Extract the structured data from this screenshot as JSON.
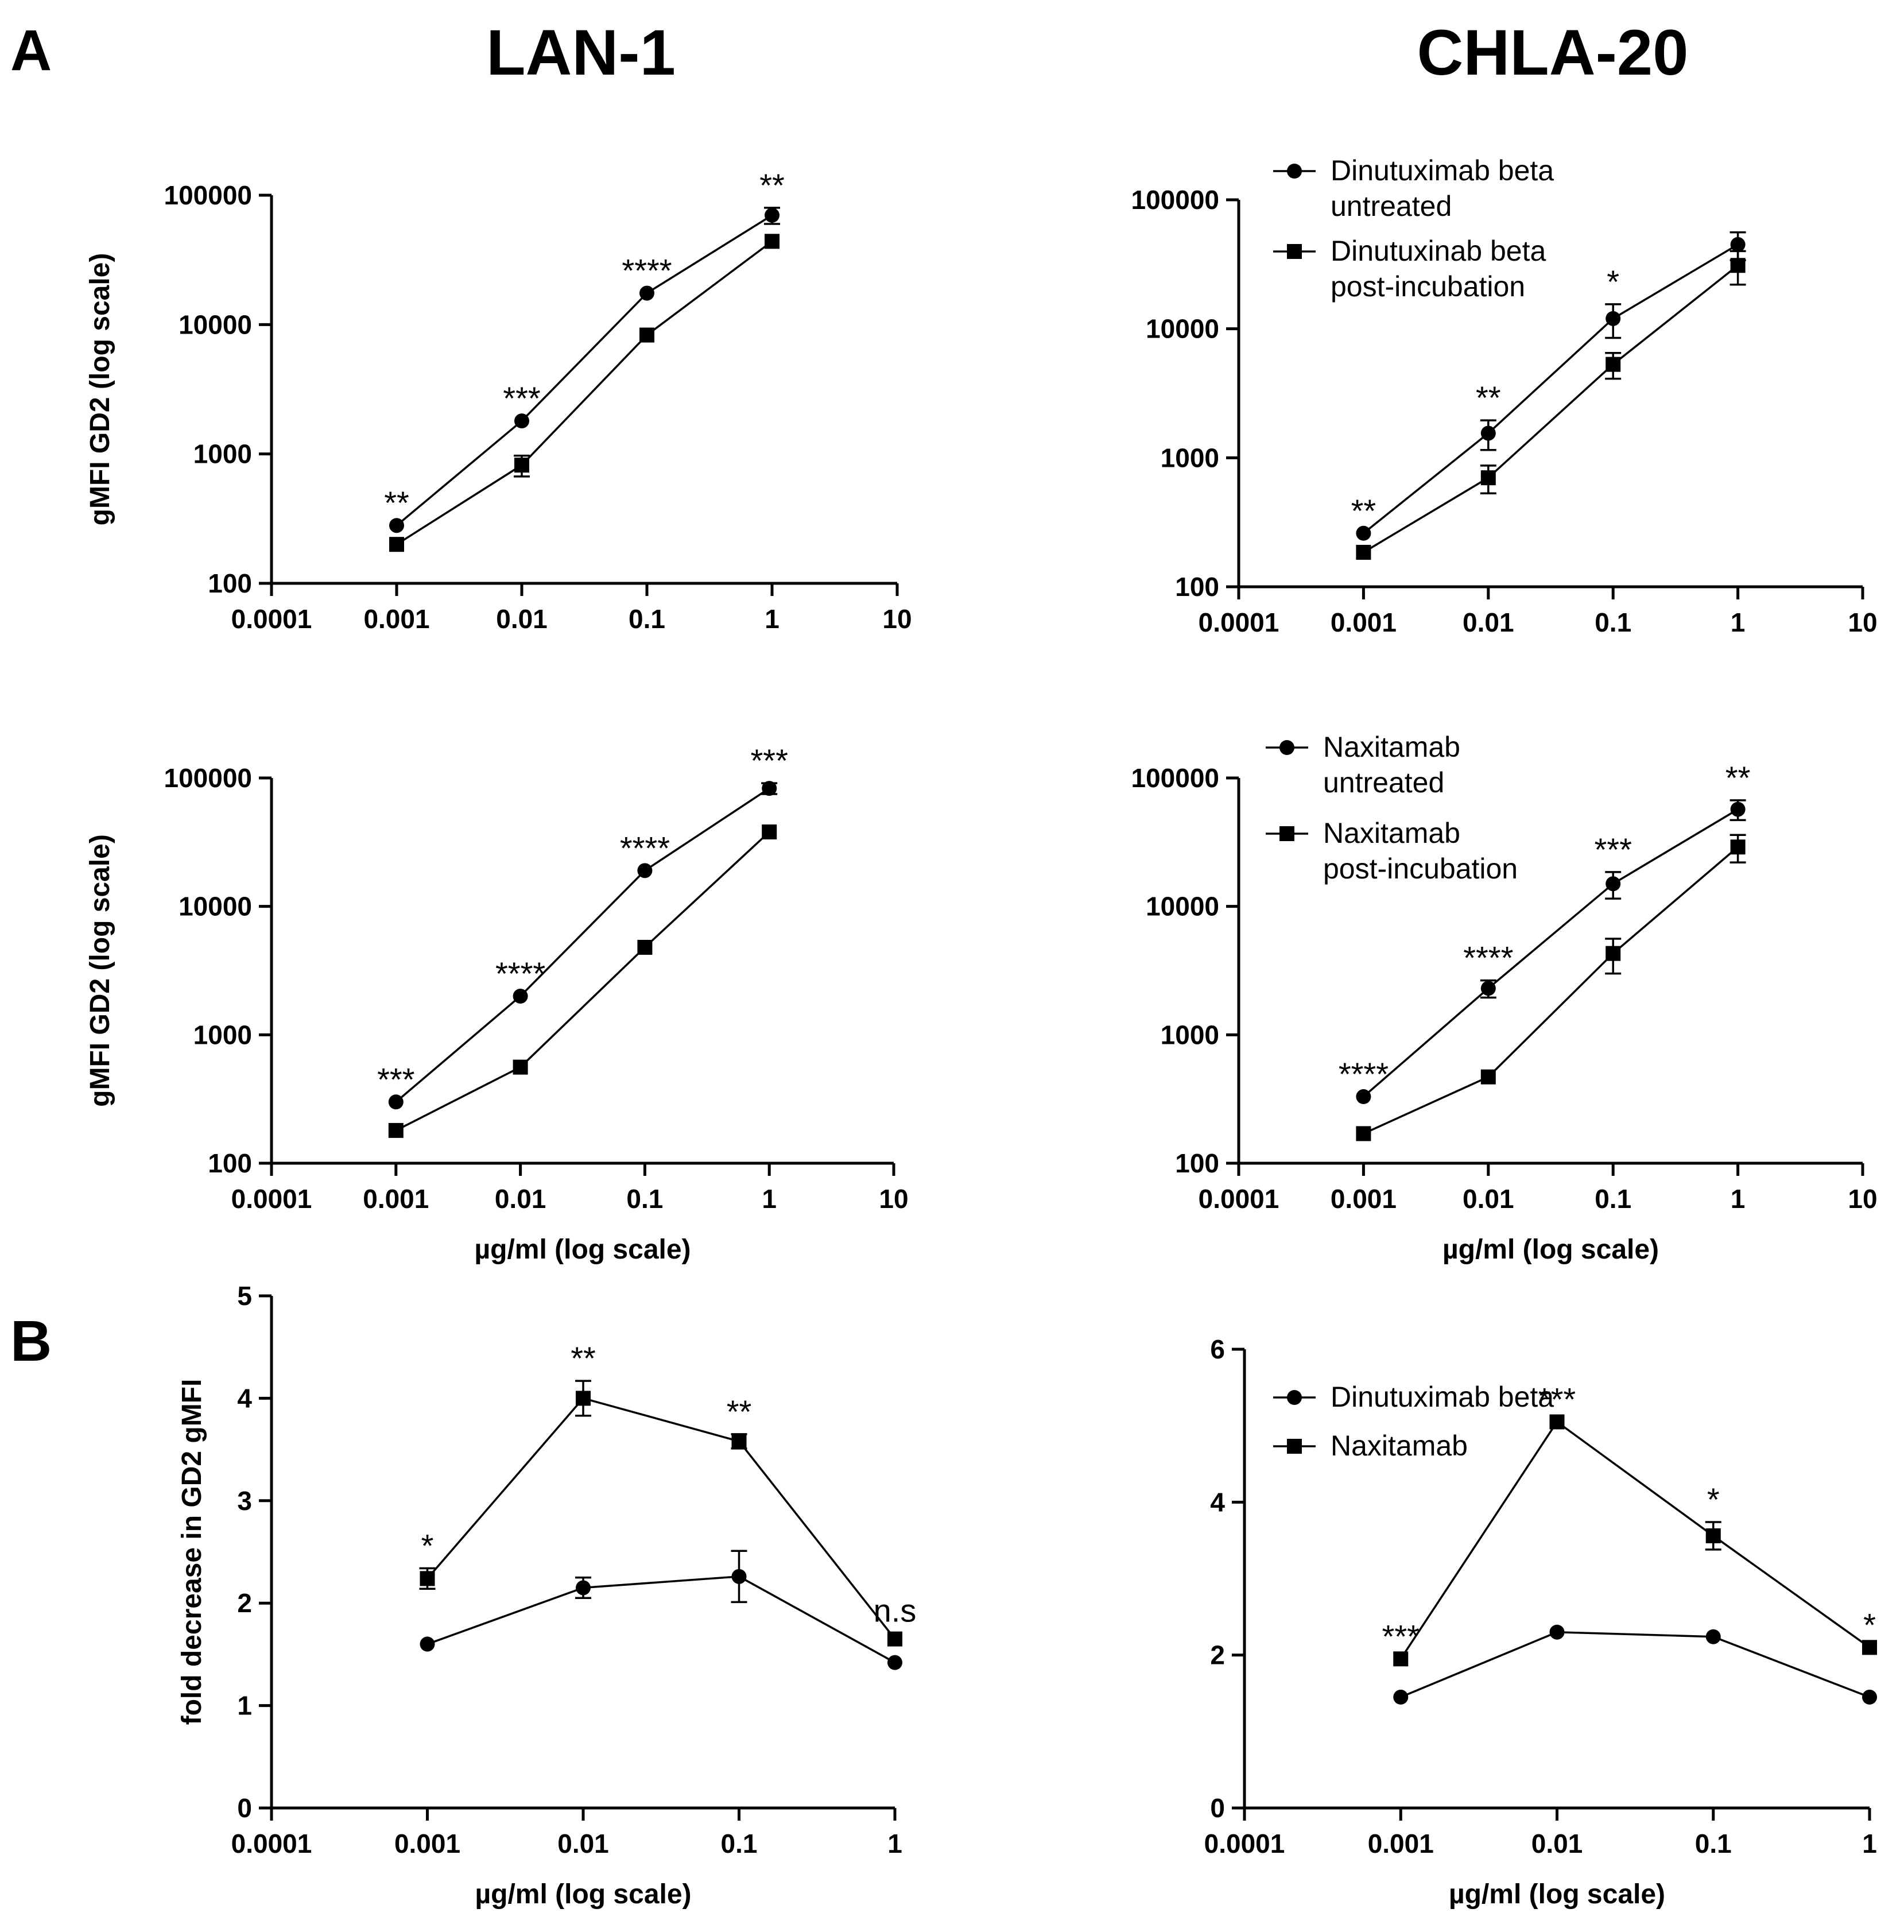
{
  "figure": {
    "panel_labels": [
      "A",
      "B"
    ],
    "column_titles": [
      "LAN-1",
      "CHLA-20"
    ]
  },
  "chart_data": [
    {
      "type": "line",
      "panel": "A",
      "cell_line": "LAN-1",
      "title": "LAN-1",
      "xlabel": "",
      "ylabel": "gMFI GD2 (log scale)",
      "xscale": "log",
      "yscale": "log",
      "xlim": [
        0.0001,
        10
      ],
      "ylim": [
        100,
        100000
      ],
      "xticks": [
        "0.0001",
        "0.001",
        "0.01",
        "0.1",
        "1",
        "10"
      ],
      "yticks": [
        "100",
        "1000",
        "10000",
        "100000"
      ],
      "x": [
        0.001,
        0.01,
        0.1,
        1
      ],
      "series": [
        {
          "name": "untreated",
          "marker": "circle",
          "values": [
            280,
            1800,
            17500,
            70000
          ],
          "errors": [
            0,
            0,
            0,
            10000
          ]
        },
        {
          "name": "post-incubation",
          "marker": "square",
          "values": [
            200,
            820,
            8300,
            44000
          ],
          "errors": [
            0,
            150,
            0,
            0
          ]
        }
      ],
      "annotations": [
        "**",
        "***",
        "****",
        "**"
      ],
      "legend": []
    },
    {
      "type": "line",
      "panel": "A",
      "cell_line": "CHLA-20",
      "title": "CHLA-20",
      "xlabel": "",
      "ylabel": "",
      "xscale": "log",
      "yscale": "log",
      "xlim": [
        0.0001,
        10
      ],
      "ylim": [
        100,
        100000
      ],
      "xticks": [
        "0.0001",
        "0.001",
        "0.01",
        "0.1",
        "1",
        "10"
      ],
      "yticks": [
        "100",
        "1000",
        "10000",
        "100000"
      ],
      "x": [
        0.001,
        0.01,
        0.1,
        1
      ],
      "series": [
        {
          "name": "Dinutuximab beta untreated",
          "marker": "circle",
          "values": [
            260,
            1550,
            12000,
            45000
          ],
          "errors": [
            0,
            400,
            3500,
            11000
          ]
        },
        {
          "name": "Dinutuxinab beta post-incubation",
          "marker": "square",
          "values": [
            185,
            700,
            5300,
            31000
          ],
          "errors": [
            0,
            170,
            1200,
            9000
          ]
        }
      ],
      "annotations": [
        "**",
        "**",
        "*",
        ""
      ],
      "legend": [
        {
          "lines": [
            "Dinutuximab beta",
            "untreated"
          ],
          "marker": "circle"
        },
        {
          "lines": [
            "Dinutuxinab beta",
            "post-incubation"
          ],
          "marker": "square"
        }
      ]
    },
    {
      "type": "line",
      "panel": "A",
      "cell_line": "LAN-1",
      "title": "",
      "xlabel": "µg/ml  (log scale)",
      "ylabel": "gMFI GD2 (log scale)",
      "xscale": "log",
      "yscale": "log",
      "xlim": [
        0.0001,
        10
      ],
      "ylim": [
        100,
        100000
      ],
      "xticks": [
        "0.0001",
        "0.001",
        "0.01",
        "0.1",
        "1",
        "10"
      ],
      "yticks": [
        "100",
        "1000",
        "10000",
        "100000"
      ],
      "x": [
        0.001,
        0.01,
        0.1,
        1
      ],
      "series": [
        {
          "name": "untreated",
          "marker": "circle",
          "values": [
            300,
            2000,
            19000,
            83000
          ],
          "errors": [
            0,
            0,
            0,
            8000
          ]
        },
        {
          "name": "post-incubation",
          "marker": "square",
          "values": [
            180,
            560,
            4800,
            38000
          ],
          "errors": [
            0,
            0,
            0,
            0
          ]
        }
      ],
      "annotations": [
        "***",
        "****",
        "****",
        "***"
      ],
      "legend": []
    },
    {
      "type": "line",
      "panel": "A",
      "cell_line": "CHLA-20",
      "title": "",
      "xlabel": "µg/ml  (log scale)",
      "ylabel": "",
      "xscale": "log",
      "yscale": "log",
      "xlim": [
        0.0001,
        10
      ],
      "ylim": [
        100,
        100000
      ],
      "xticks": [
        "0.0001",
        "0.001",
        "0.01",
        "0.1",
        "1",
        "10"
      ],
      "yticks": [
        "100",
        "1000",
        "10000",
        "100000"
      ],
      "x": [
        0.001,
        0.01,
        0.1,
        1
      ],
      "series": [
        {
          "name": "Naxitamab untreated",
          "marker": "circle",
          "values": [
            330,
            2300,
            15000,
            57000
          ],
          "errors": [
            0,
            350,
            3500,
            10000
          ]
        },
        {
          "name": "Naxitamab post-incubation",
          "marker": "square",
          "values": [
            170,
            470,
            4300,
            29000
          ],
          "errors": [
            0,
            0,
            1300,
            7000
          ]
        }
      ],
      "annotations": [
        "****",
        "****",
        "***",
        "**"
      ],
      "legend": [
        {
          "lines": [
            "Naxitamab",
            "untreated"
          ],
          "marker": "circle"
        },
        {
          "lines": [
            "Naxitamab",
            "post-incubation"
          ],
          "marker": "square"
        }
      ]
    },
    {
      "type": "line",
      "panel": "B",
      "cell_line": "LAN-1",
      "title": "",
      "xlabel": "µg/ml  (log scale)",
      "ylabel": "fold decrease in GD2 gMFI",
      "xscale": "log",
      "yscale": "linear",
      "xlim": [
        0.0001,
        1
      ],
      "ylim": [
        0,
        5
      ],
      "xticks": [
        "0.0001",
        "0.001",
        "0.01",
        "0.1",
        "1"
      ],
      "yticks": [
        "0",
        "1",
        "2",
        "3",
        "4",
        "5"
      ],
      "x": [
        0.001,
        0.01,
        0.1,
        1
      ],
      "series": [
        {
          "name": "Dinutuximab beta",
          "marker": "circle",
          "values": [
            1.6,
            2.15,
            2.26,
            1.42
          ],
          "errors": [
            0,
            0.1,
            0.25,
            0
          ]
        },
        {
          "name": "Naxitamab",
          "marker": "square",
          "values": [
            2.24,
            4.0,
            3.58,
            1.65
          ],
          "errors": [
            0.1,
            0.17,
            0.07,
            0
          ]
        }
      ],
      "annotations": [
        "*",
        "**",
        "**",
        "n.s"
      ],
      "legend": []
    },
    {
      "type": "line",
      "panel": "B",
      "cell_line": "CHLA-20",
      "title": "",
      "xlabel": "µg/ml  (log scale)",
      "ylabel": "",
      "xscale": "log",
      "yscale": "linear",
      "xlim": [
        0.0001,
        1
      ],
      "ylim": [
        0,
        6
      ],
      "xticks": [
        "0.0001",
        "0.001",
        "0.01",
        "0.1",
        "1"
      ],
      "yticks": [
        "0",
        "2",
        "4",
        "6"
      ],
      "x": [
        0.001,
        0.01,
        0.1,
        1
      ],
      "series": [
        {
          "name": "Dinutuximab beta",
          "marker": "circle",
          "values": [
            1.45,
            2.3,
            2.24,
            1.45
          ],
          "errors": [
            0,
            0,
            0,
            0
          ]
        },
        {
          "name": "Naxitamab",
          "marker": "square",
          "values": [
            1.95,
            5.05,
            3.56,
            2.1
          ],
          "errors": [
            0,
            0,
            0.18,
            0
          ]
        }
      ],
      "annotations": [
        "***",
        "***",
        "*",
        "*"
      ],
      "legend": [
        {
          "lines": [
            "Dinutuximab beta"
          ],
          "marker": "circle"
        },
        {
          "lines": [
            "Naxitamab"
          ],
          "marker": "square"
        }
      ]
    }
  ]
}
